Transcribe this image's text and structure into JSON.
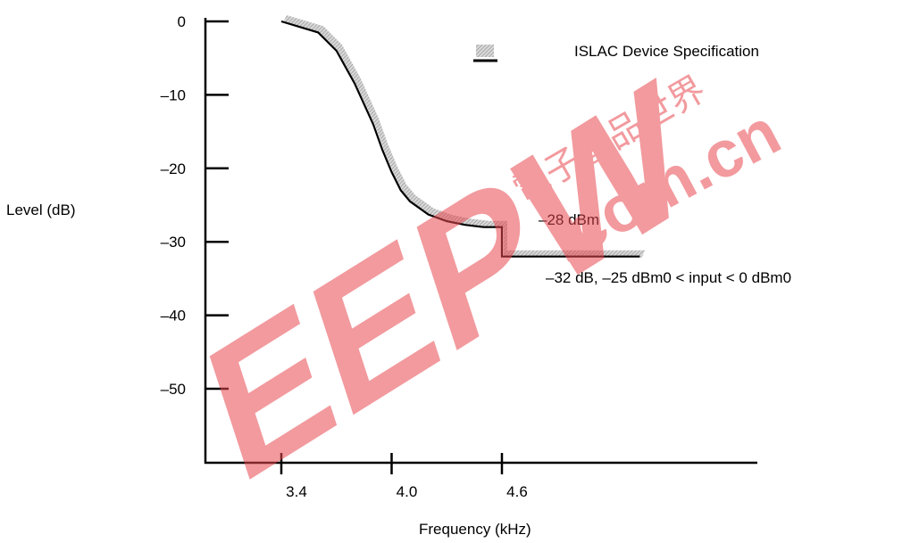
{
  "chart_data": {
    "type": "line",
    "title": "",
    "xlabel": "Frequency (kHz)",
    "ylabel": "Level (dB)",
    "x_ticks": [
      {
        "value": 3.4,
        "label": "3.4"
      },
      {
        "value": 4.0,
        "label": "4.0"
      },
      {
        "value": 4.6,
        "label": "4.6"
      }
    ],
    "y_ticks": [
      {
        "value": 0,
        "label": "0"
      },
      {
        "value": -10,
        "label": "–10"
      },
      {
        "value": -20,
        "label": "–20"
      },
      {
        "value": -30,
        "label": "–30"
      },
      {
        "value": -40,
        "label": "–40"
      },
      {
        "value": -50,
        "label": "–50"
      }
    ],
    "xlim": [
      3.0,
      5.6
    ],
    "ylim": [
      -60,
      0
    ],
    "legend": {
      "label": "ISLAC Device Specification",
      "position": "top-right"
    },
    "series": [
      {
        "name": "ISLAC Device Specification",
        "style": "response-with-hatched-limit",
        "x": [
          3.4,
          3.6,
          3.7,
          3.8,
          3.9,
          3.95,
          4.0,
          4.05,
          4.1,
          4.2,
          4.3,
          4.4,
          4.5,
          4.6,
          4.6,
          4.8,
          5.0,
          5.2,
          5.35
        ],
        "y": [
          0,
          -1.5,
          -4,
          -8.5,
          -14,
          -17.5,
          -20.5,
          -23,
          -24.5,
          -26.3,
          -27.2,
          -27.7,
          -28,
          -28,
          -32,
          -32,
          -32,
          -32,
          -32
        ]
      }
    ],
    "annotations": [
      {
        "text": "–28 dBm",
        "x": 4.62,
        "y": -28
      },
      {
        "text": "–32 dB, –25 dBm0 < input < 0 dBm0",
        "x": 4.9,
        "y": -34.5
      }
    ],
    "grid": false
  },
  "watermark": {
    "logo": "EEPW",
    "site": ".com.cn",
    "chinese": "電子產品世界",
    "color": "#e8484f"
  }
}
